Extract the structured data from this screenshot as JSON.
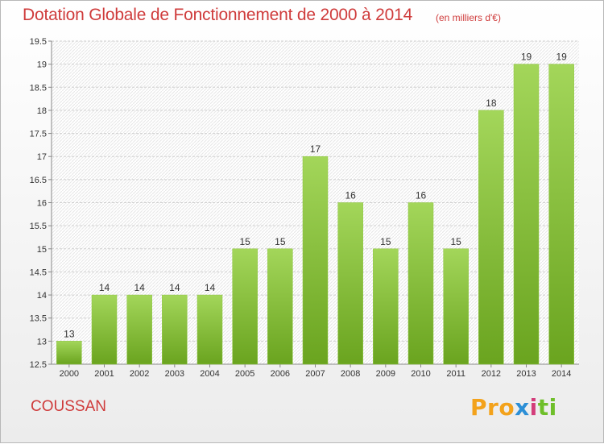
{
  "header": {
    "title": "Dotation Globale de Fonctionnement de 2000 à 2014",
    "subtitle": "(en milliers d'€)"
  },
  "footer": {
    "commune": "COUSSAN",
    "logo": "Proxiti"
  },
  "colors": {
    "title": "#cf3b3b",
    "bar_light": "#a3d65a",
    "bar_dark": "#6aa41f"
  },
  "chart_data": {
    "type": "bar",
    "title": "Dotation Globale de Fonctionnement de 2000 à 2014",
    "subtitle": "(en milliers d'€)",
    "categories": [
      "2000",
      "2001",
      "2002",
      "2003",
      "2004",
      "2005",
      "2006",
      "2007",
      "2008",
      "2009",
      "2010",
      "2011",
      "2012",
      "2013",
      "2014"
    ],
    "values": [
      13,
      14,
      14,
      14,
      14,
      15,
      15,
      17,
      16,
      15,
      16,
      15,
      18,
      19,
      19
    ],
    "value_labels": [
      "13",
      "14",
      "14",
      "14",
      "14",
      "15",
      "15",
      "17",
      "16",
      "15",
      "16",
      "15",
      "18",
      "19",
      "19"
    ],
    "y_ticks": [
      "12.5",
      "13",
      "13.5",
      "14",
      "14.5",
      "15",
      "15.5",
      "16",
      "16.5",
      "17",
      "17.5",
      "18",
      "18.5",
      "19",
      "19.5"
    ],
    "ylim": [
      12.5,
      19.5
    ],
    "xlabel": "",
    "ylabel": "",
    "grid": true,
    "legend": "none"
  }
}
